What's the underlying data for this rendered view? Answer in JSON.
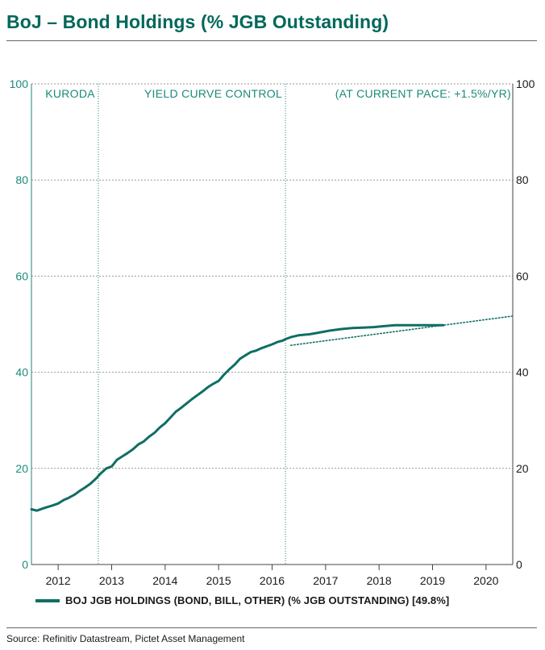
{
  "title": "BoJ – Bond Holdings (% JGB Outstanding)",
  "source": "Source: Refinitiv Datastream, Pictet Asset Management",
  "colors": {
    "series": "#0f6e64",
    "title": "#00685a",
    "axis": "#1a8a7a",
    "grid": "#9a9a9a"
  },
  "chart_data": {
    "type": "line",
    "title": "BoJ – Bond Holdings (% JGB Outstanding)",
    "xlabel": "",
    "ylabel": "",
    "xlim": [
      2011.5,
      2020.5
    ],
    "ylim": [
      0,
      100
    ],
    "y_ticks": [
      0,
      20,
      40,
      60,
      80,
      100
    ],
    "x_tick_labels": [
      "2012",
      "2013",
      "2014",
      "2015",
      "2016",
      "2017",
      "2018",
      "2019",
      "2020"
    ],
    "grid": true,
    "legend_position": "bottom",
    "annotations": [
      {
        "label": "KURODA",
        "x": 2012.75
      },
      {
        "label": "YIELD CURVE CONTROL",
        "x": 2016.25
      },
      {
        "label": "(AT CURRENT PACE: +1.5%/YR)",
        "x": null
      }
    ],
    "series": [
      {
        "name": "BOJ JGB HOLDINGS (BOND, BILL, OTHER) (% JGB OUTSTANDING) [49.8%]",
        "style": "solid",
        "x": [
          2011.5,
          2011.6,
          2011.75,
          2011.9,
          2012.0,
          2012.1,
          2012.2,
          2012.3,
          2012.4,
          2012.5,
          2012.6,
          2012.7,
          2012.8,
          2012.9,
          2013.0,
          2013.1,
          2013.2,
          2013.3,
          2013.4,
          2013.5,
          2013.6,
          2013.7,
          2013.8,
          2013.9,
          2014.0,
          2014.1,
          2014.2,
          2014.3,
          2014.4,
          2014.5,
          2014.6,
          2014.7,
          2014.8,
          2014.9,
          2015.0,
          2015.1,
          2015.2,
          2015.3,
          2015.4,
          2015.5,
          2015.6,
          2015.7,
          2015.8,
          2015.9,
          2016.0,
          2016.1,
          2016.2,
          2016.25,
          2016.35,
          2016.5,
          2016.7,
          2016.9,
          2017.1,
          2017.3,
          2017.5,
          2017.7,
          2017.9,
          2018.1,
          2018.3,
          2018.5,
          2018.7,
          2018.9,
          2019.1,
          2019.2
        ],
        "values": [
          11.5,
          11.2,
          11.8,
          12.3,
          12.7,
          13.4,
          13.9,
          14.5,
          15.3,
          16.0,
          16.8,
          17.8,
          19.0,
          20.0,
          20.4,
          21.8,
          22.5,
          23.2,
          24.0,
          25.0,
          25.6,
          26.6,
          27.4,
          28.5,
          29.4,
          30.6,
          31.8,
          32.6,
          33.5,
          34.4,
          35.2,
          36.0,
          36.9,
          37.6,
          38.2,
          39.5,
          40.6,
          41.6,
          42.8,
          43.5,
          44.2,
          44.5,
          45.0,
          45.4,
          45.8,
          46.3,
          46.6,
          46.9,
          47.3,
          47.7,
          47.9,
          48.3,
          48.7,
          49.0,
          49.2,
          49.3,
          49.4,
          49.6,
          49.8,
          49.8,
          49.8,
          49.8,
          49.8,
          49.8
        ]
      },
      {
        "name": "(AT CURRENT PACE: +1.5%/YR)",
        "style": "dotted",
        "x": [
          2016.35,
          2020.5
        ],
        "values": [
          45.6,
          51.7
        ]
      }
    ]
  }
}
